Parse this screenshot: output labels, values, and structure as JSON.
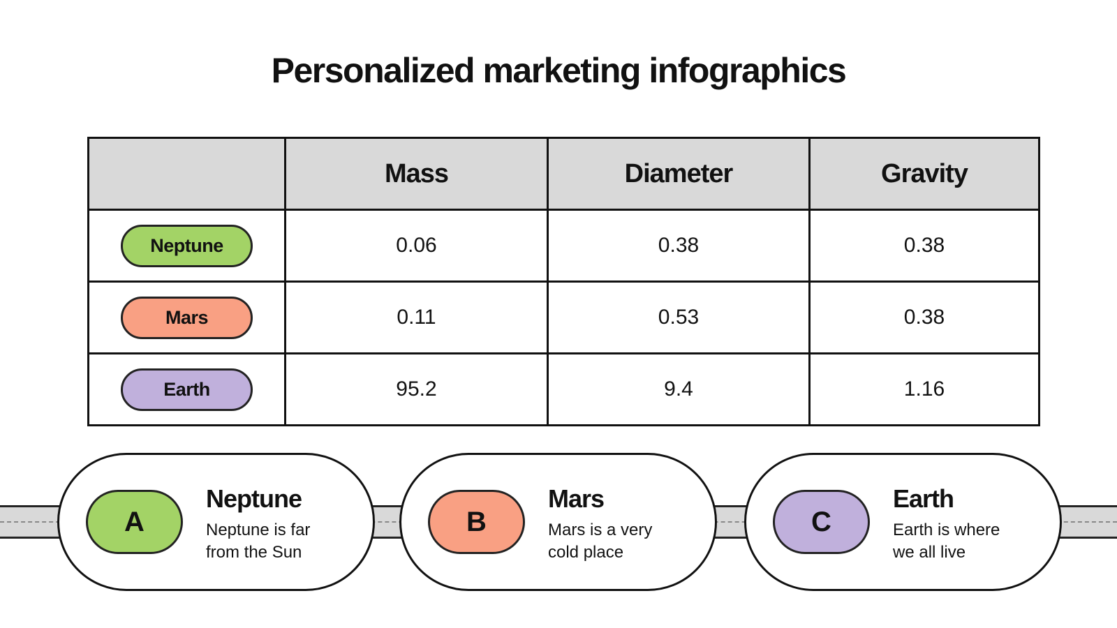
{
  "title": "Personalized marketing infographics",
  "table": {
    "header": [
      "Mass",
      "Diameter",
      "Gravity"
    ],
    "rows": [
      {
        "label": "Neptune",
        "color": "#a3d366",
        "cells": [
          "0.06",
          "0.38",
          "0.38"
        ]
      },
      {
        "label": "Mars",
        "color": "#f9a083",
        "cells": [
          "0.11",
          "0.53",
          "0.38"
        ]
      },
      {
        "label": "Earth",
        "color": "#c0b0dc",
        "cells": [
          "95.2",
          "9.4",
          "1.16"
        ]
      }
    ]
  },
  "cards": [
    {
      "letter": "A",
      "title": "Neptune",
      "text": "Neptune is far from the Sun",
      "color": "#a3d366"
    },
    {
      "letter": "B",
      "title": "Mars",
      "text": "Mars is a very cold place",
      "color": "#f9a083"
    },
    {
      "letter": "C",
      "title": "Earth",
      "text": "Earth is where we all live",
      "color": "#c0b0dc"
    }
  ]
}
